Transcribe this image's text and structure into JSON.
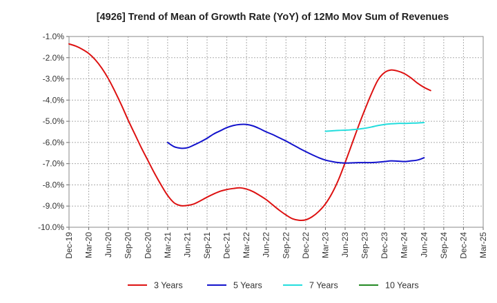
{
  "chart_data": {
    "type": "line",
    "title": "[4926]  Trend of Mean of Growth Rate (YoY) of 12Mo Mov Sum of Revenues",
    "xlabel": "",
    "ylabel": "",
    "ylim": [
      -10.0,
      -1.0
    ],
    "y_ticks": [
      "-1.0%",
      "-2.0%",
      "-3.0%",
      "-4.0%",
      "-5.0%",
      "-6.0%",
      "-7.0%",
      "-8.0%",
      "-9.0%",
      "-10.0%"
    ],
    "y_tick_values": [
      -1,
      -2,
      -3,
      -4,
      -5,
      -6,
      -7,
      -8,
      -9,
      -10
    ],
    "x_tick_labels": [
      "Dec-19",
      "Mar-20",
      "Jun-20",
      "Sep-20",
      "Dec-20",
      "Mar-21",
      "Jun-21",
      "Sep-21",
      "Dec-21",
      "Mar-22",
      "Jun-22",
      "Sep-22",
      "Dec-22",
      "Mar-23",
      "Jun-23",
      "Sep-23",
      "Dec-23",
      "Mar-24",
      "Jun-24",
      "Sep-24",
      "Dec-24",
      "Mar-25"
    ],
    "x_range_months": [
      0,
      63
    ],
    "grid": true,
    "legend_position": "bottom",
    "series": [
      {
        "name": "3 Years",
        "color": "#dd1111",
        "points": [
          [
            0,
            -1.35
          ],
          [
            1,
            -1.45
          ],
          [
            2,
            -1.6
          ],
          [
            3,
            -1.8
          ],
          [
            4,
            -2.1
          ],
          [
            5,
            -2.5
          ],
          [
            6,
            -3.0
          ],
          [
            7,
            -3.6
          ],
          [
            8,
            -4.25
          ],
          [
            9,
            -4.95
          ],
          [
            10,
            -5.6
          ],
          [
            11,
            -6.25
          ],
          [
            12,
            -6.85
          ],
          [
            13,
            -7.45
          ],
          [
            14,
            -8.0
          ],
          [
            15,
            -8.5
          ],
          [
            16,
            -8.85
          ],
          [
            17,
            -8.98
          ],
          [
            18,
            -8.97
          ],
          [
            19,
            -8.9
          ],
          [
            20,
            -8.75
          ],
          [
            21,
            -8.58
          ],
          [
            22,
            -8.43
          ],
          [
            23,
            -8.3
          ],
          [
            24,
            -8.22
          ],
          [
            25,
            -8.17
          ],
          [
            26,
            -8.14
          ],
          [
            27,
            -8.2
          ],
          [
            28,
            -8.32
          ],
          [
            29,
            -8.5
          ],
          [
            30,
            -8.7
          ],
          [
            31,
            -8.95
          ],
          [
            32,
            -9.2
          ],
          [
            33,
            -9.42
          ],
          [
            34,
            -9.6
          ],
          [
            35,
            -9.67
          ],
          [
            36,
            -9.65
          ],
          [
            37,
            -9.5
          ],
          [
            38,
            -9.25
          ],
          [
            39,
            -8.9
          ],
          [
            40,
            -8.4
          ],
          [
            41,
            -7.75
          ],
          [
            42,
            -6.95
          ],
          [
            43,
            -6.1
          ],
          [
            44,
            -5.25
          ],
          [
            45,
            -4.45
          ],
          [
            46,
            -3.7
          ],
          [
            47,
            -3.05
          ],
          [
            48,
            -2.7
          ],
          [
            49,
            -2.58
          ],
          [
            50,
            -2.63
          ],
          [
            51,
            -2.75
          ],
          [
            52,
            -2.95
          ],
          [
            53,
            -3.2
          ],
          [
            54,
            -3.4
          ],
          [
            55,
            -3.55
          ]
        ]
      },
      {
        "name": "5 Years",
        "color": "#1111cc",
        "points": [
          [
            15,
            -6.0
          ],
          [
            16,
            -6.2
          ],
          [
            17,
            -6.27
          ],
          [
            18,
            -6.25
          ],
          [
            19,
            -6.12
          ],
          [
            20,
            -5.97
          ],
          [
            21,
            -5.8
          ],
          [
            22,
            -5.6
          ],
          [
            23,
            -5.45
          ],
          [
            24,
            -5.3
          ],
          [
            25,
            -5.2
          ],
          [
            26,
            -5.15
          ],
          [
            27,
            -5.15
          ],
          [
            28,
            -5.22
          ],
          [
            29,
            -5.35
          ],
          [
            30,
            -5.5
          ],
          [
            31,
            -5.63
          ],
          [
            32,
            -5.78
          ],
          [
            33,
            -5.93
          ],
          [
            34,
            -6.1
          ],
          [
            35,
            -6.27
          ],
          [
            36,
            -6.43
          ],
          [
            37,
            -6.58
          ],
          [
            38,
            -6.72
          ],
          [
            39,
            -6.83
          ],
          [
            40,
            -6.9
          ],
          [
            41,
            -6.95
          ],
          [
            42,
            -6.97
          ],
          [
            43,
            -6.96
          ],
          [
            44,
            -6.95
          ],
          [
            45,
            -6.95
          ],
          [
            46,
            -6.95
          ],
          [
            47,
            -6.93
          ],
          [
            48,
            -6.9
          ],
          [
            49,
            -6.87
          ],
          [
            50,
            -6.88
          ],
          [
            51,
            -6.9
          ],
          [
            52,
            -6.87
          ],
          [
            53,
            -6.83
          ],
          [
            54,
            -6.72
          ]
        ]
      },
      {
        "name": "7 Years",
        "color": "#22dddd",
        "points": [
          [
            39,
            -5.47
          ],
          [
            40,
            -5.45
          ],
          [
            41,
            -5.43
          ],
          [
            42,
            -5.42
          ],
          [
            43,
            -5.4
          ],
          [
            44,
            -5.37
          ],
          [
            45,
            -5.33
          ],
          [
            46,
            -5.27
          ],
          [
            47,
            -5.2
          ],
          [
            48,
            -5.15
          ],
          [
            49,
            -5.12
          ],
          [
            50,
            -5.1
          ],
          [
            51,
            -5.1
          ],
          [
            52,
            -5.09
          ],
          [
            53,
            -5.08
          ],
          [
            54,
            -5.06
          ]
        ]
      },
      {
        "name": "10 Years",
        "color": "#228822",
        "points": []
      }
    ]
  }
}
